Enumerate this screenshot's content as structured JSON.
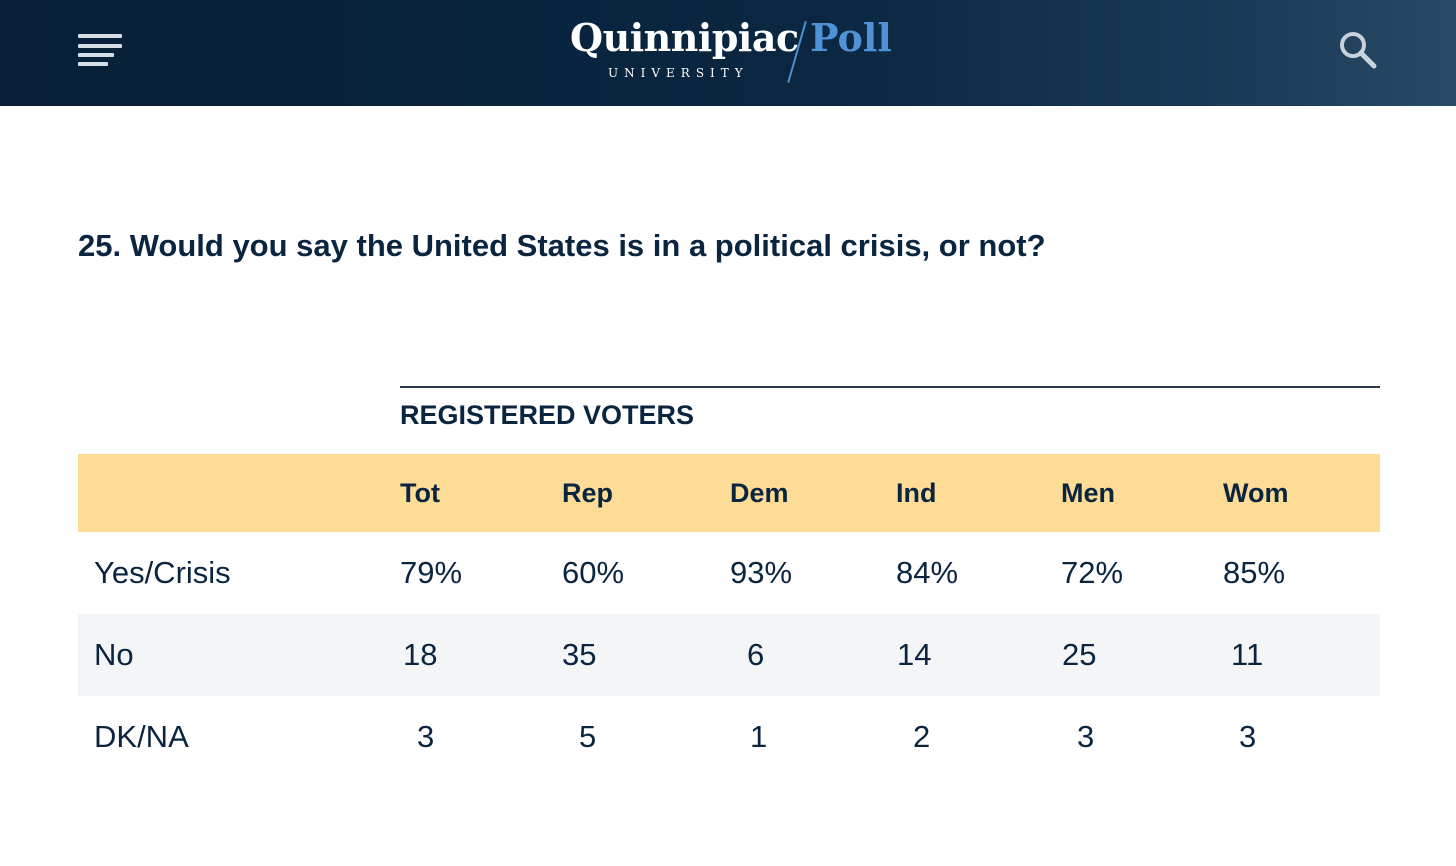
{
  "header": {
    "logo_main": "Quinnipiac",
    "logo_sub": "UNIVERSITY",
    "logo_poll": "Poll",
    "menu_icon": "hamburger-menu-icon",
    "search_icon": "search-icon",
    "colors": {
      "background": "#0a2640",
      "poll_accent": "#4f92d6"
    }
  },
  "question": "25. Would you say the United States is in a political crisis, or not?",
  "table": {
    "group_label": "REGISTERED VOTERS",
    "columns": [
      "Tot",
      "Rep",
      "Dem",
      "Ind",
      "Men",
      "Wom"
    ],
    "rows": [
      {
        "label": "Yes/Crisis",
        "values": [
          "79%",
          "60%",
          "93%",
          "84%",
          "72%",
          "85%"
        ]
      },
      {
        "label": "No",
        "values": [
          "18",
          "35",
          "6",
          "14",
          "25",
          "11"
        ]
      },
      {
        "label": "DK/NA",
        "values": [
          "3",
          "5",
          "1",
          "2",
          "3",
          "3"
        ]
      }
    ],
    "colors": {
      "header_band": "#fddc96",
      "alt_row": "#f3f5f7"
    }
  }
}
